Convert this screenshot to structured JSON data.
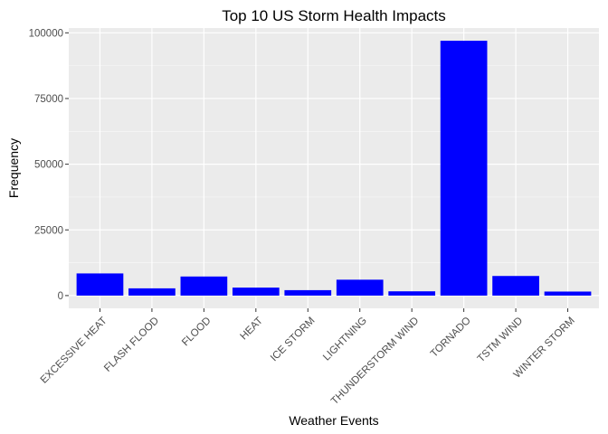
{
  "chart_data": {
    "type": "bar",
    "title": "Top 10 US Storm Health Impacts",
    "xlabel": "Weather Events",
    "ylabel": "Frequency",
    "categories": [
      "EXCESSIVE HEAT",
      "FLASH FLOOD",
      "FLOOD",
      "HEAT",
      "ICE STORM",
      "LIGHTNING",
      "THUNDERSTORM WIND",
      "TORNADO",
      "TSTM WIND",
      "WINTER STORM"
    ],
    "values": [
      8428,
      2755,
      7259,
      3037,
      2064,
      6046,
      1621,
      96979,
      7461,
      1527
    ],
    "ylim": [
      -4849,
      101828
    ],
    "yticks": [
      0,
      25000,
      50000,
      75000,
      100000
    ],
    "ytick_labels": [
      "0",
      "25000",
      "50000",
      "75000",
      "100000"
    ],
    "bar_color": "#0000ff",
    "panel_color": "#ebebeb",
    "grid": true,
    "legend": "none"
  }
}
